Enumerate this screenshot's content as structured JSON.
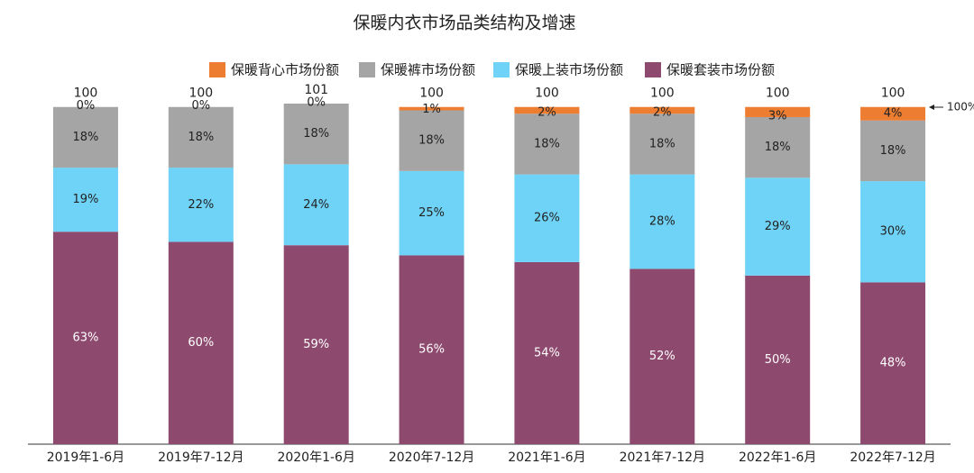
{
  "chart_data": {
    "type": "stacked_bar",
    "title": "保暖内衣市场品类结构及增速",
    "categories": [
      "2019年1-6月",
      "2019年7-12月",
      "2020年1-6月",
      "2020年7-12月",
      "2021年1-6月",
      "2021年7-12月",
      "2022年1-6月",
      "2022年7-12月"
    ],
    "series": [
      {
        "name": "保暖背心市场份额",
        "color": "#ed7d31",
        "values": [
          0,
          0,
          0,
          1,
          2,
          2,
          3,
          4
        ],
        "value_labels": [
          "0%",
          "0%",
          "0%",
          "1%",
          "2%",
          "2%",
          "3%",
          "4%"
        ]
      },
      {
        "name": "保暖裤市场份额",
        "color": "#a5a5a5",
        "values": [
          18,
          18,
          18,
          18,
          18,
          18,
          18,
          18
        ],
        "value_labels": [
          "18%",
          "18%",
          "18%",
          "18%",
          "18%",
          "18%",
          "18%",
          "18%"
        ]
      },
      {
        "name": "保暖上装市场份额",
        "color": "#6fd3f7",
        "values": [
          19,
          22,
          24,
          25,
          26,
          28,
          29,
          30
        ],
        "value_labels": [
          "19%",
          "22%",
          "24%",
          "25%",
          "26%",
          "28%",
          "29%",
          "30%"
        ]
      },
      {
        "name": "保暖套装市场份额",
        "color": "#8e4a6e",
        "values": [
          63,
          60,
          59,
          56,
          54,
          52,
          50,
          48
        ],
        "value_labels": [
          "63%",
          "60%",
          "59%",
          "56%",
          "54%",
          "52%",
          "50%",
          "48%"
        ]
      }
    ],
    "totals": [
      100,
      100,
      101,
      100,
      100,
      100,
      100,
      100
    ],
    "annotation": "100%"
  }
}
